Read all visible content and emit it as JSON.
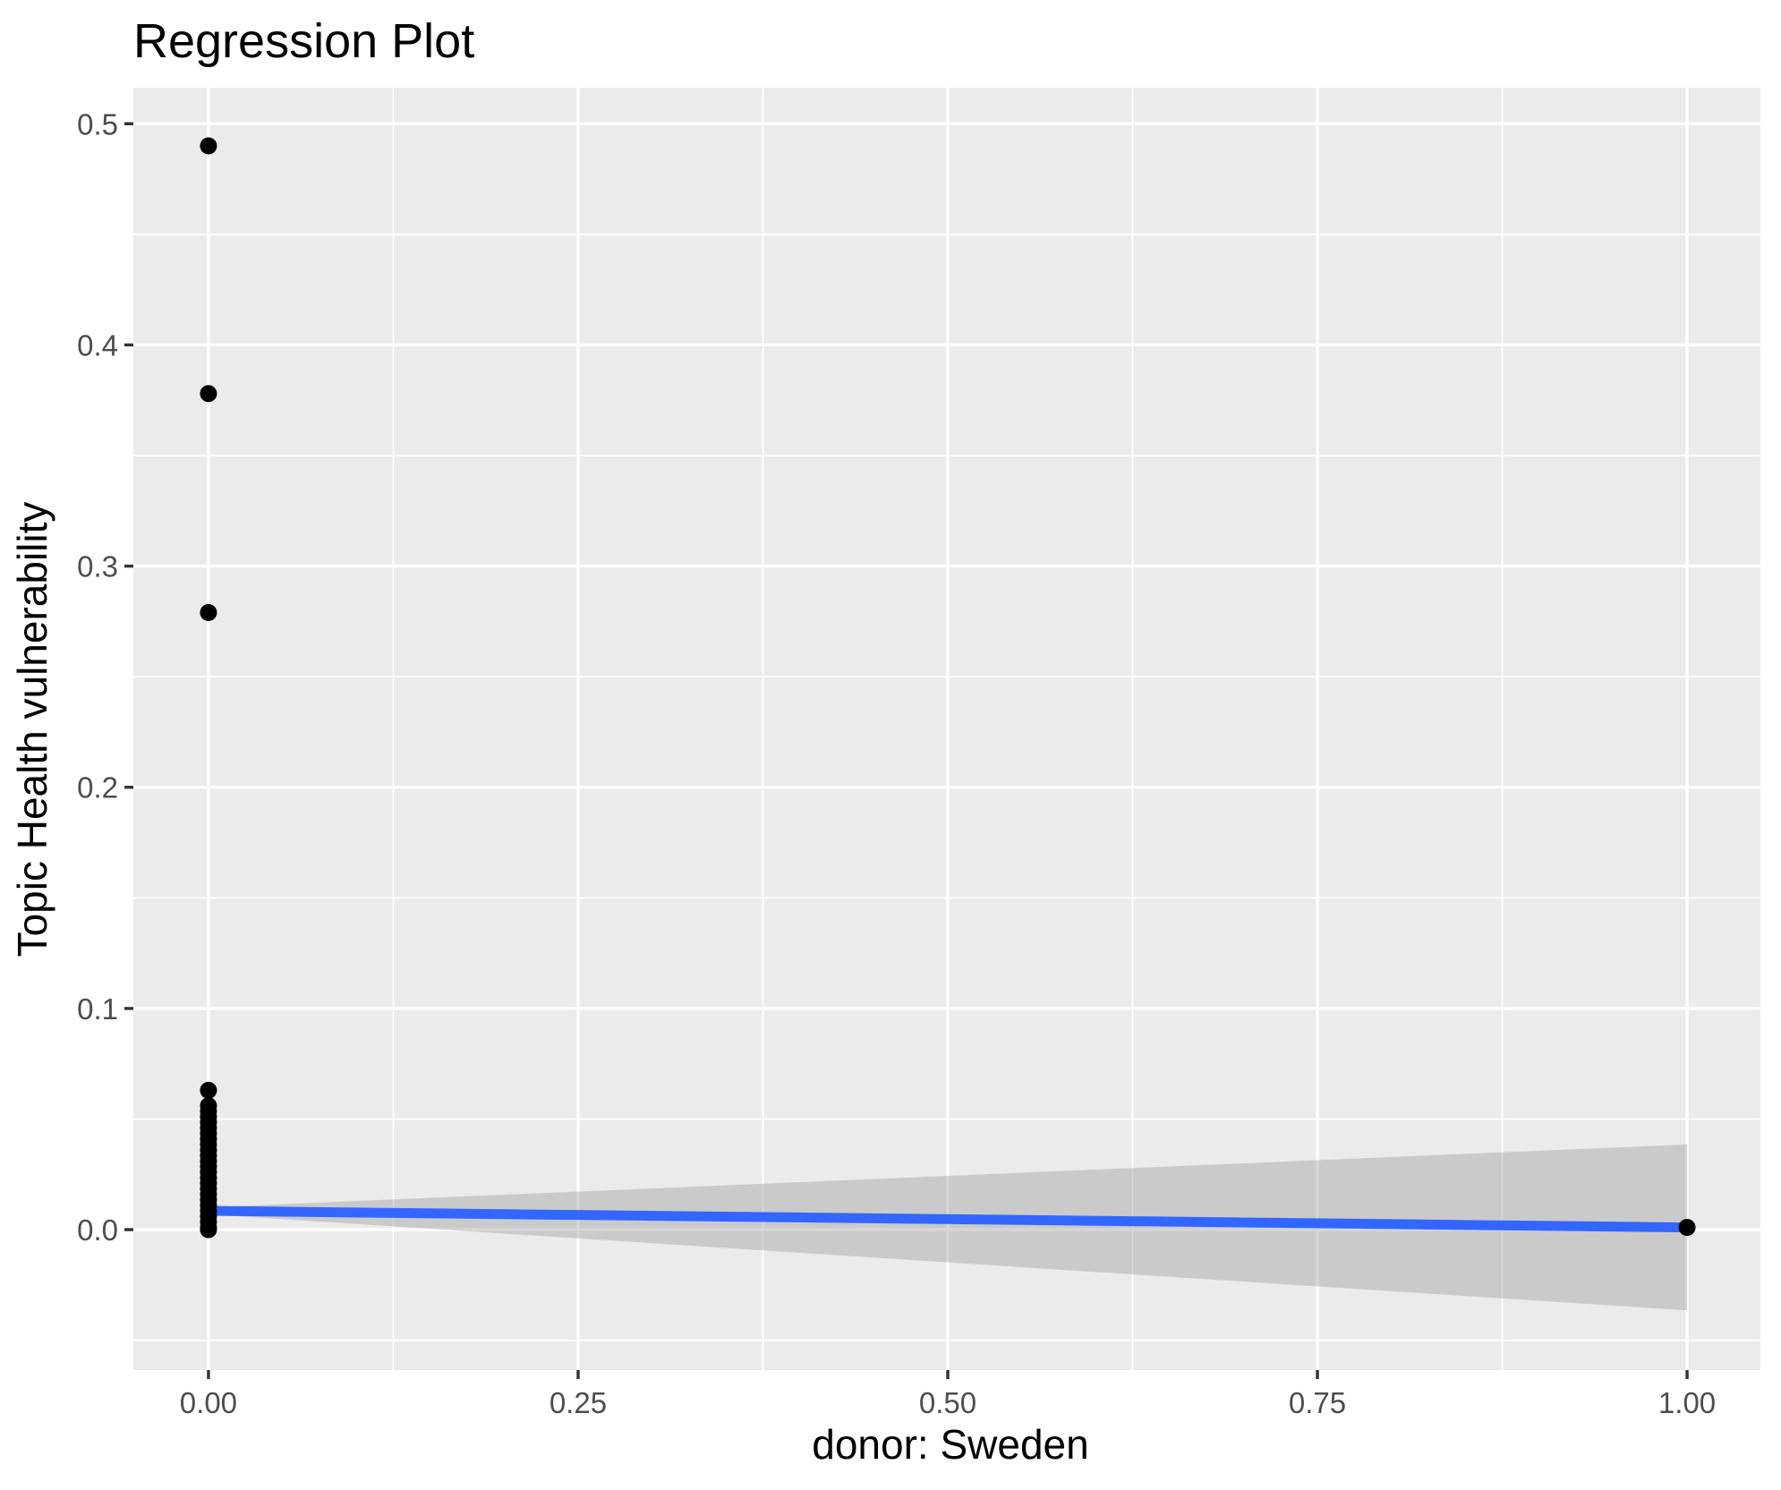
{
  "chart_data": {
    "type": "scatter",
    "title": "Regression Plot",
    "xlabel": "donor: Sweden",
    "ylabel": "Topic Health vulnerability",
    "legend": "none",
    "grid": "major+minor white gridlines on grey panel",
    "xlim": [
      -0.0508,
      1.0496
    ],
    "ylim": [
      -0.0635,
      0.5163
    ],
    "x_ticks": {
      "values": [
        0,
        0.25,
        0.5,
        0.75,
        1.0
      ],
      "labels": [
        "0.00",
        "0.25",
        "0.50",
        "0.75",
        "1.00"
      ]
    },
    "y_ticks": {
      "values": [
        0,
        0.1,
        0.2,
        0.3,
        0.4,
        0.5
      ],
      "labels": [
        "0.0",
        "0.1",
        "0.2",
        "0.3",
        "0.4",
        "0.5"
      ]
    },
    "x_minor_gridlines": [
      0.125,
      0.375,
      0.625,
      0.875
    ],
    "y_minor_gridlines": [
      -0.05,
      0.05,
      0.15,
      0.25,
      0.35,
      0.45
    ],
    "points": [
      [
        0,
        0.49
      ],
      [
        0,
        0.378
      ],
      [
        0,
        0.279
      ],
      [
        0,
        0.063
      ],
      [
        0,
        0.056
      ],
      [
        0,
        0.0535
      ],
      [
        0,
        0.051
      ],
      [
        0,
        0.0485
      ],
      [
        0,
        0.046
      ],
      [
        0,
        0.0435
      ],
      [
        0,
        0.041
      ],
      [
        0,
        0.0385
      ],
      [
        0,
        0.036
      ],
      [
        0,
        0.0335
      ],
      [
        0,
        0.031
      ],
      [
        0,
        0.0285
      ],
      [
        0,
        0.026
      ],
      [
        0,
        0.0235
      ],
      [
        0,
        0.021
      ],
      [
        0,
        0.0185
      ],
      [
        0,
        0.016
      ],
      [
        0,
        0.0135
      ],
      [
        0,
        0.011
      ],
      [
        0,
        0.0085
      ],
      [
        0,
        0.006
      ],
      [
        0,
        0.0035
      ],
      [
        0,
        0.001
      ],
      [
        0,
        0.0
      ],
      [
        1,
        0.001
      ]
    ],
    "regression_line": {
      "x": [
        0,
        1
      ],
      "y": [
        0.0085,
        0.001
      ]
    },
    "confidence_band": {
      "x": [
        0,
        1
      ],
      "upper": [
        0.0101,
        0.0385
      ],
      "lower": [
        0.0069,
        -0.0365
      ]
    },
    "colors": {
      "figure_background": "#FFFFFF",
      "panel_background": "#EBEBEB",
      "gridline": "#FFFFFF",
      "point": "#000000",
      "regression_line": "#3366FF",
      "confidence_band_fill": "#999999",
      "confidence_band_opacity": 0.4,
      "tick_mark": "#333333",
      "tick_label": "#4D4D4D",
      "text": "#000000"
    }
  }
}
